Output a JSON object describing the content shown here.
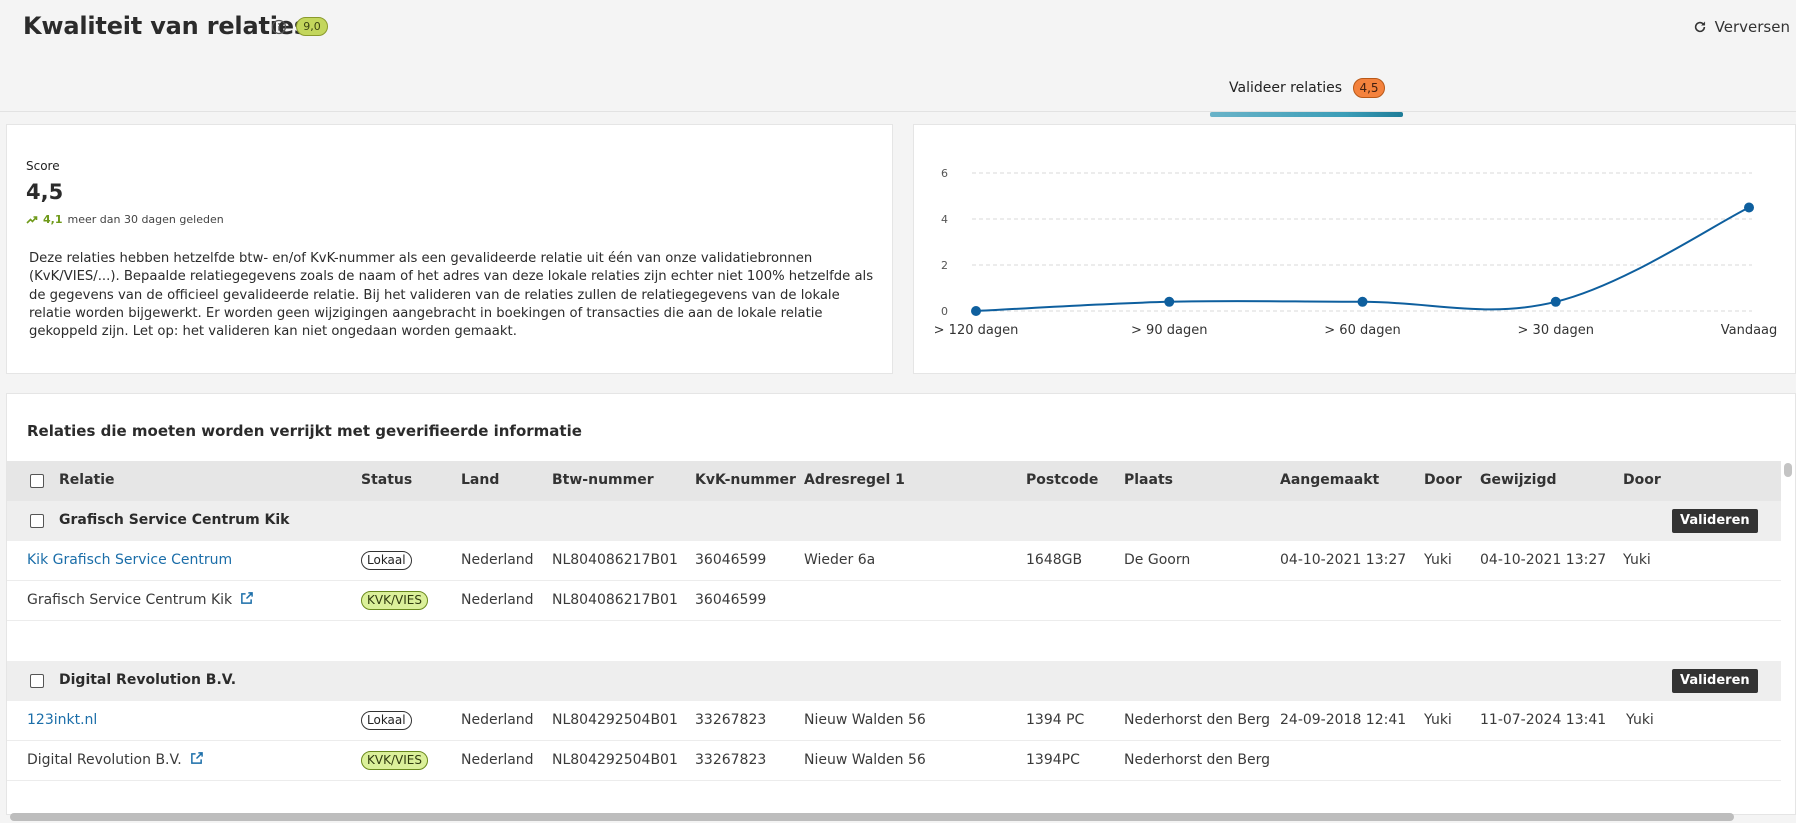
{
  "header": {
    "title": "Kwaliteit van relaties",
    "overall_score": "9,0",
    "refresh_label": "Verversen"
  },
  "tab": {
    "label": "Valideer relaties",
    "badge": "4,5"
  },
  "score_card": {
    "label": "Score",
    "value": "4,5",
    "trend_value": "4,1",
    "trend_text": "meer dan 30 dagen geleden",
    "description": "Deze relaties hebben hetzelfde btw- en/of KvK-nummer als een gevalideerde relatie uit één van onze validatiebronnen (KvK/VIES/...). Bepaalde relatiegegevens zoals de naam of het adres van deze lokale relaties zijn echter niet 100% hetzelfde als de gegevens van de officieel gevalideerde relatie. Bij het valideren van de relaties zullen de relatiegegevens van de lokale relatie worden bijgewerkt. Er worden geen wijzigingen aangebracht in boekingen of transacties die aan de lokale relatie gekoppeld zijn. Let op: het valideren kan niet ongedaan worden gemaakt."
  },
  "chart_data": {
    "type": "line",
    "categories": [
      "> 120 dagen",
      "> 90 dagen",
      "> 60 dagen",
      "> 30 dagen",
      "Vandaag"
    ],
    "values": [
      0,
      0.4,
      0.4,
      0.4,
      4.5
    ],
    "ylim": [
      0,
      6
    ],
    "yticks": [
      0,
      2,
      4,
      6
    ],
    "grid": true,
    "color": "#0e5f9e",
    "title": "",
    "xlabel": "",
    "ylabel": ""
  },
  "table": {
    "title": "Relaties die moeten worden verrijkt met geverifieerde informatie",
    "columns": [
      "Relatie",
      "Status",
      "Land",
      "Btw-nummer",
      "KvK-nummer",
      "Adresregel 1",
      "Postcode",
      "Plaats",
      "Aangemaakt",
      "Door",
      "Gewijzigd",
      "Door"
    ],
    "validate_label": "Valideren",
    "groups": [
      {
        "name": "Grafisch Service Centrum Kik",
        "rows": [
          {
            "relatie": "Kik Grafisch Service Centrum",
            "status": "Lokaal",
            "land": "Nederland",
            "btw": "NL804086217B01",
            "kvk": "36046599",
            "adres": "Wieder 6a",
            "postcode": "1648GB",
            "plaats": "De Goorn",
            "aangemaakt": "04-10-2021 13:27",
            "door": "Yuki",
            "gewijzigd": "04-10-2021 13:27",
            "door2": "Yuki"
          },
          {
            "relatie": "Grafisch Service Centrum Kik",
            "status": "KVK/VIES",
            "land": "Nederland",
            "btw": "NL804086217B01",
            "kvk": "36046599",
            "adres": "",
            "postcode": "",
            "plaats": "",
            "aangemaakt": "",
            "door": "",
            "gewijzigd": "",
            "door2": ""
          }
        ]
      },
      {
        "name": "Digital Revolution B.V.",
        "rows": [
          {
            "relatie": "123inkt.nl",
            "status": "Lokaal",
            "land": "Nederland",
            "btw": "NL804292504B01",
            "kvk": "33267823",
            "adres": "Nieuw Walden 56",
            "postcode": "1394 PC",
            "plaats": "Nederhorst den Berg",
            "aangemaakt": "24-09-2018 12:41",
            "door": "Yuki",
            "gewijzigd": "11-07-2024 13:41",
            "door2": "Yuki"
          },
          {
            "relatie": "Digital Revolution B.V.",
            "status": "KVK/VIES",
            "land": "Nederland",
            "btw": "NL804292504B01",
            "kvk": "33267823",
            "adres": "Nieuw Walden 56",
            "postcode": "1394PC",
            "plaats": "Nederhorst den Berg",
            "aangemaakt": "",
            "door": "",
            "gewijzigd": "",
            "door2": ""
          }
        ]
      }
    ]
  }
}
